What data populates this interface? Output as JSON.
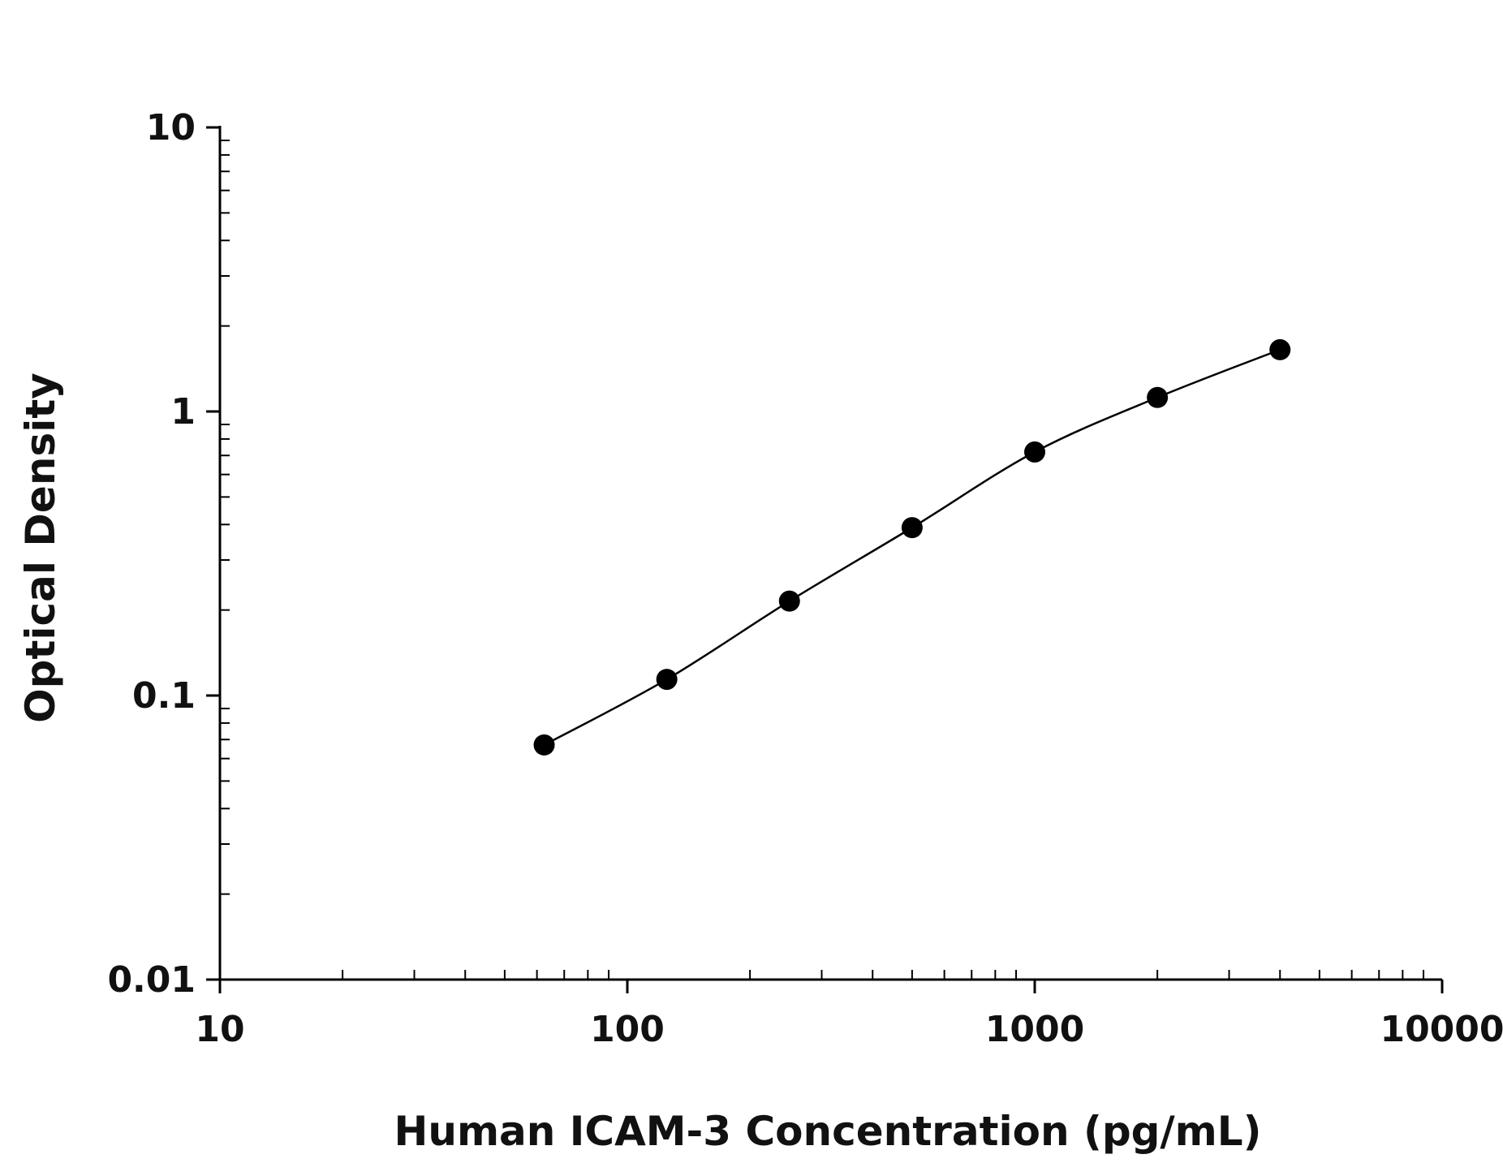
{
  "chart_data": {
    "type": "scatter",
    "xlabel": "Human ICAM-3 Concentration (pg/mL)",
    "ylabel": "Optical Density",
    "x_scale": "log",
    "y_scale": "log",
    "xlim": [
      10,
      10000
    ],
    "ylim": [
      0.01,
      10
    ],
    "x_tick_labels": [
      "10",
      "100",
      "1000",
      "10000"
    ],
    "x_ticks": [
      10,
      100,
      1000,
      10000
    ],
    "y_tick_labels": [
      "0.01",
      "0.1",
      "1",
      "10"
    ],
    "y_ticks": [
      0.01,
      0.1,
      1,
      10
    ],
    "grid": false,
    "series": [
      {
        "x": [
          62.5,
          125,
          250,
          500,
          1000,
          2000,
          4000
        ],
        "y": [
          0.067,
          0.114,
          0.215,
          0.39,
          0.72,
          1.12,
          1.65
        ],
        "fit_curve": true
      }
    ],
    "colors": {
      "marker": "#000000",
      "line": "#000000",
      "axis": "#000000"
    }
  }
}
